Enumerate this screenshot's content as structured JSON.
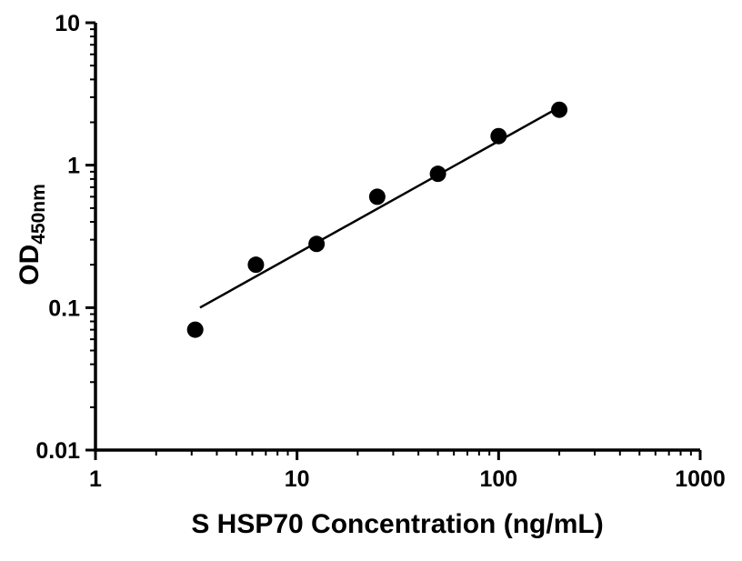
{
  "chart_data": {
    "type": "scatter",
    "title": "",
    "xlabel": "S HSP70 Concentration (ng/mL)",
    "ylabel_main": "OD",
    "ylabel_sub": "450nm",
    "xscale": "log",
    "yscale": "log",
    "xlim": [
      1,
      1000
    ],
    "ylim": [
      0.01,
      10
    ],
    "grid": false,
    "legend": "none",
    "marker_color": "#000000",
    "line_color": "#000000",
    "axis_color": "#000000",
    "x": [
      3.125,
      6.25,
      12.5,
      25,
      50,
      100,
      200
    ],
    "y": [
      0.07,
      0.2,
      0.28,
      0.6,
      0.87,
      1.6,
      2.45
    ],
    "fit_line": {
      "x": [
        3.3,
        200
      ],
      "y": [
        0.1,
        2.55
      ]
    },
    "x_ticks": [
      {
        "value": 1,
        "label": "1"
      },
      {
        "value": 10,
        "label": "10"
      },
      {
        "value": 100,
        "label": "100"
      },
      {
        "value": 1000,
        "label": "1000"
      }
    ],
    "y_ticks": [
      {
        "value": 0.01,
        "label": "0.01"
      },
      {
        "value": 0.1,
        "label": "0.1"
      },
      {
        "value": 1,
        "label": "1"
      },
      {
        "value": 10,
        "label": "10"
      }
    ]
  }
}
